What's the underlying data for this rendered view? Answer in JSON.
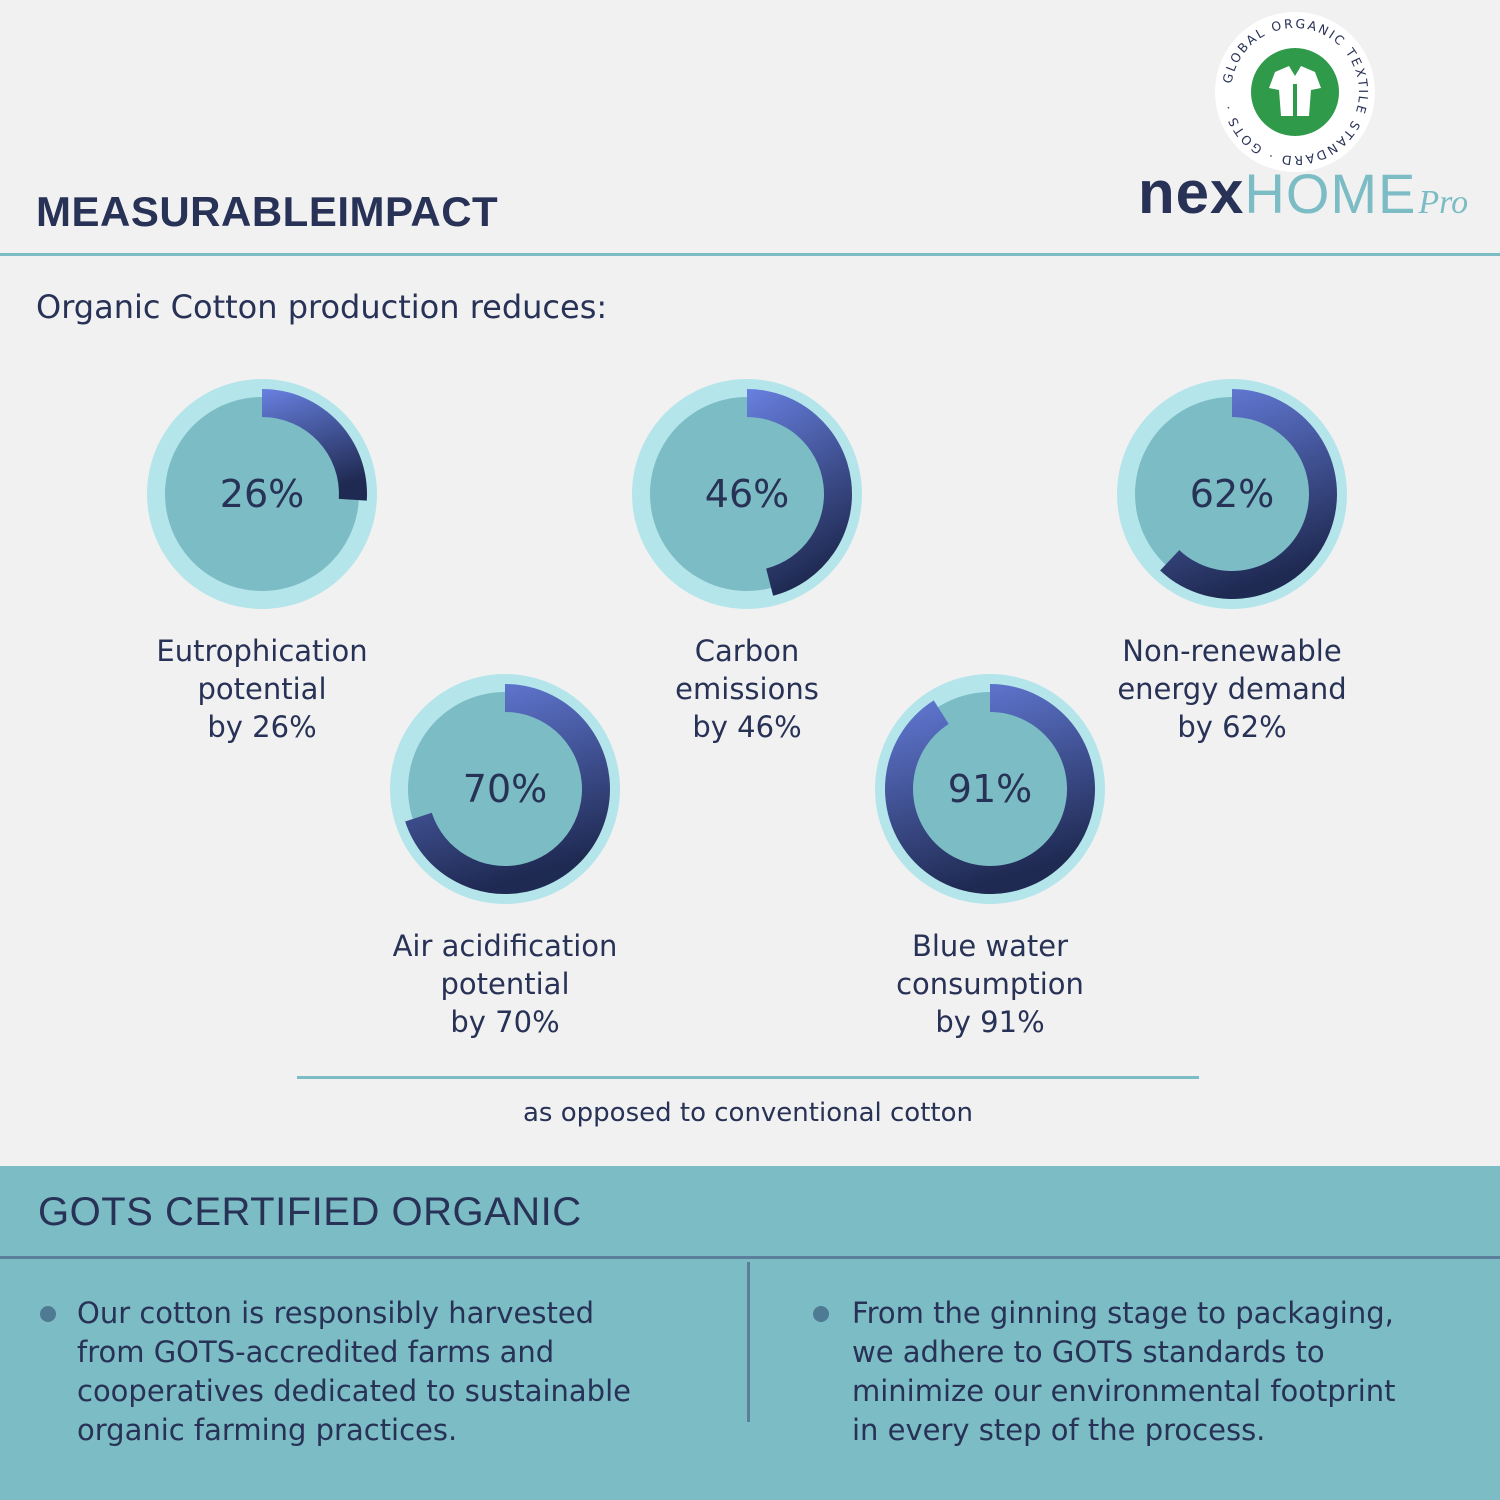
{
  "header": {
    "title": "MEASURABLEIMPACT",
    "subtitle": "Organic Cotton production reduces:"
  },
  "logo": {
    "seal_text": "GLOBAL ORGANIC TEXTILE STANDARD · GOTS ·",
    "brand_nex": "nex",
    "brand_home": "HOME",
    "brand_pro": "Pro"
  },
  "colors": {
    "background": "#f1f1f1",
    "teal": "#7bbcc5",
    "ring_outer": "#b4e5ea",
    "navy": "#283256",
    "arc_start": "#6880e0",
    "arc_end": "#1f2a52",
    "seal_green": "#2e9a4a"
  },
  "chart_data": {
    "type": "pie",
    "items": [
      {
        "value": 26,
        "label": "26%",
        "caption": [
          "Eutrophication",
          "potential",
          "by 26%"
        ]
      },
      {
        "value": 46,
        "label": "46%",
        "caption": [
          "Carbon",
          "emissions",
          "by 46%"
        ]
      },
      {
        "value": 62,
        "label": "62%",
        "caption": [
          "Non-renewable",
          "energy demand",
          "by 62%"
        ]
      },
      {
        "value": 70,
        "label": "70%",
        "caption": [
          "Air acidification",
          "potential",
          "by 70%"
        ]
      },
      {
        "value": 91,
        "label": "91%",
        "caption": [
          "Blue water",
          "consumption",
          "by 91%"
        ]
      }
    ]
  },
  "note": "as opposed to conventional cotton",
  "panel": {
    "title": "GOTS CERTIFIED ORGANIC",
    "bullets": [
      [
        "Our cotton is responsibly harvested",
        "from GOTS-accredited farms and",
        "cooperatives dedicated to sustainable",
        "organic farming practices."
      ],
      [
        "From the ginning stage to packaging,",
        "we adhere to GOTS standards to",
        "minimize our environmental footprint",
        "in every step of the process."
      ]
    ]
  }
}
